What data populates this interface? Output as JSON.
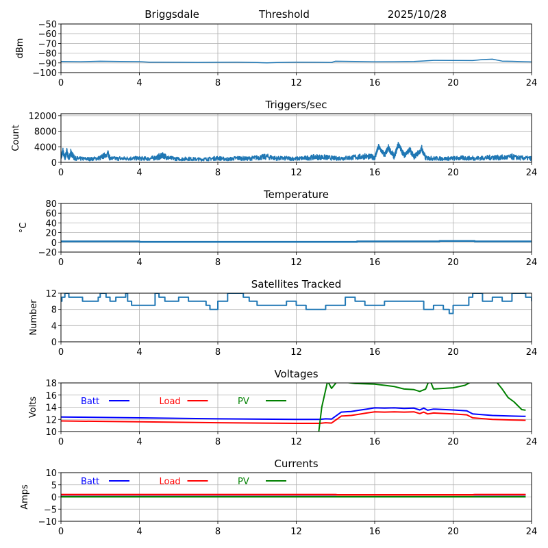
{
  "header": {
    "station": "Briggsdale",
    "mode": "Threshold",
    "date": "2025/10/28"
  },
  "chart_data": [
    {
      "type": "line",
      "id": "threshold",
      "title": "",
      "xlabel": "",
      "ylabel": "dBm",
      "xlim": [
        0,
        24
      ],
      "ylim": [
        -100,
        -50
      ],
      "xticks": [
        0,
        4,
        8,
        12,
        16,
        20,
        24
      ],
      "yticks": [
        -100,
        -90,
        -80,
        -70,
        -60,
        -50
      ],
      "ytick_labels": [
        "−100",
        "−90",
        "−80",
        "−70",
        "−60",
        "−50"
      ],
      "grid": true,
      "series": [
        {
          "name": "Threshold",
          "color": "#1f77b4",
          "x": [
            0,
            1,
            2,
            3,
            4,
            4.5,
            5,
            6,
            7,
            8,
            9,
            10,
            10.5,
            11,
            12,
            13,
            13.8,
            14,
            15,
            16,
            17,
            18,
            18.5,
            19,
            20,
            21,
            21.5,
            22,
            22.5,
            23,
            24
          ],
          "y": [
            -88.5,
            -88.8,
            -88.3,
            -88.6,
            -88.7,
            -89.2,
            -89.3,
            -89.4,
            -89.5,
            -89.4,
            -89.3,
            -89.6,
            -90,
            -89.6,
            -89.3,
            -89.4,
            -89.5,
            -88.3,
            -88.6,
            -88.9,
            -88.8,
            -88.6,
            -88,
            -87.4,
            -87.5,
            -87.6,
            -86.6,
            -86.2,
            -88.2,
            -88.4,
            -89
          ]
        }
      ]
    },
    {
      "type": "line",
      "id": "triggers",
      "title": "Triggers/sec",
      "xlabel": "",
      "ylabel": "Count",
      "xlim": [
        0,
        24
      ],
      "ylim": [
        0,
        12500
      ],
      "xticks": [
        0,
        4,
        8,
        12,
        16,
        20,
        24
      ],
      "yticks": [
        0,
        4000,
        8000,
        12000
      ],
      "ytick_labels": [
        "0",
        "4000",
        "8000",
        "12000"
      ],
      "grid": true,
      "series": [
        {
          "name": "Triggers",
          "color": "#1f77b4",
          "x": [
            0,
            0.1,
            0.2,
            0.3,
            0.4,
            0.5,
            0.7,
            1,
            1.5,
            2,
            2.4,
            2.5,
            3,
            3.5,
            4,
            4.5,
            5,
            5.2,
            5.5,
            6,
            6.5,
            7,
            7.5,
            8,
            8.5,
            9,
            9.5,
            10,
            10.5,
            11,
            11.5,
            12,
            12.5,
            13,
            13.5,
            14,
            14.5,
            15,
            15.5,
            16,
            16.2,
            16.5,
            16.7,
            17,
            17.2,
            17.5,
            17.8,
            18,
            18.4,
            18.6,
            19,
            19.5,
            20,
            20.5,
            21,
            21.5,
            22,
            22.5,
            23,
            23.5,
            24
          ],
          "y": [
            1500,
            3300,
            1200,
            3400,
            1000,
            2900,
            1200,
            1100,
            1000,
            1300,
            2700,
            1200,
            1100,
            1200,
            1200,
            1100,
            1600,
            2100,
            1300,
            1000,
            1100,
            900,
            1000,
            1300,
            900,
            1300,
            1100,
            1400,
            1700,
            1200,
            1200,
            1100,
            1300,
            1600,
            1500,
            1200,
            1300,
            1500,
            1800,
            1500,
            4700,
            2200,
            4300,
            1700,
            5400,
            2200,
            3800,
            1600,
            4000,
            1300,
            1200,
            1100,
            1200,
            1300,
            1200,
            1300,
            1500,
            1400,
            1600,
            1300,
            1200
          ]
        }
      ]
    },
    {
      "type": "line",
      "id": "temperature",
      "title": "Temperature",
      "xlabel": "",
      "ylabel": "°C",
      "xlim": [
        0,
        24
      ],
      "ylim": [
        -20,
        80
      ],
      "xticks": [
        0,
        4,
        8,
        12,
        16,
        20,
        24
      ],
      "yticks": [
        -20,
        0,
        20,
        40,
        60,
        80
      ],
      "ytick_labels": [
        "−20",
        "0",
        "20",
        "40",
        "60",
        "80"
      ],
      "grid": true,
      "series": [
        {
          "name": "Temperature",
          "color": "#1f77b4",
          "x": [
            0,
            4,
            4,
            15.1,
            15.1,
            19.3,
            19.3,
            21.1,
            21.1,
            24
          ],
          "y": [
            2,
            2,
            1,
            1,
            2,
            2,
            3,
            3,
            2,
            2
          ]
        }
      ]
    },
    {
      "type": "line",
      "id": "satellites",
      "title": "Satellites Tracked",
      "xlabel": "",
      "ylabel": "Number",
      "xlim": [
        0,
        24
      ],
      "ylim": [
        0,
        12
      ],
      "xticks": [
        0,
        4,
        8,
        12,
        16,
        20,
        24
      ],
      "yticks": [
        0,
        4,
        8,
        12
      ],
      "ytick_labels": [
        "0",
        "4",
        "8",
        "12"
      ],
      "grid": true,
      "series": [
        {
          "name": "Satellites",
          "color": "#1f77b4",
          "x": [
            0,
            0.05,
            0.2,
            0.4,
            0.5,
            1.1,
            1.9,
            2.0,
            2.3,
            2.5,
            2.8,
            3.0,
            3.3,
            3.4,
            3.6,
            4.8,
            5.0,
            5.3,
            6.0,
            6.5,
            7.0,
            7.4,
            7.6,
            8.0,
            8.5,
            9.0,
            9.3,
            9.6,
            10.0,
            11.0,
            11.5,
            12.0,
            12.5,
            13.0,
            13.5,
            14.3,
            14.5,
            15.0,
            15.5,
            16.0,
            16.5,
            17.0,
            18.0,
            18.5,
            19.0,
            19.5,
            19.8,
            20.0,
            20.5,
            20.8,
            21.0,
            21.5,
            22.0,
            22.5,
            23.0,
            23.7,
            24.0
          ],
          "y": [
            10,
            11,
            12,
            11,
            11,
            10,
            11,
            12,
            11,
            10,
            11,
            11,
            12,
            10,
            9,
            12,
            11,
            10,
            11,
            10,
            10,
            9,
            8,
            10,
            12,
            12,
            11,
            10,
            9,
            9,
            10,
            9,
            8,
            8,
            9,
            9,
            11,
            10,
            9,
            9,
            10,
            10,
            10,
            8,
            9,
            8,
            7,
            9,
            9,
            11,
            12,
            10,
            11,
            10,
            12,
            11,
            10
          ]
        }
      ]
    },
    {
      "type": "line",
      "id": "voltages",
      "title": "Voltages",
      "xlabel": "",
      "ylabel": "Volts",
      "xlim": [
        0,
        24
      ],
      "ylim": [
        10,
        18
      ],
      "xticks": [
        0,
        4,
        8,
        12,
        16,
        20,
        24
      ],
      "yticks": [
        10,
        12,
        14,
        16,
        18
      ],
      "ytick_labels": [
        "10",
        "12",
        "14",
        "16",
        "18"
      ],
      "grid": true,
      "legend": "inside-top-left-horizontal",
      "series": [
        {
          "name": "Batt",
          "color": "#0000ff",
          "x": [
            0,
            4,
            8,
            12,
            13.2,
            13.5,
            13.8,
            14.3,
            14.8,
            15.2,
            15.6,
            16,
            16.5,
            17,
            17.5,
            18,
            18.3,
            18.5,
            18.7,
            19,
            20,
            20.7,
            21,
            22,
            23,
            23.7
          ],
          "y": [
            12.4,
            12.25,
            12.1,
            12.0,
            12.0,
            12.1,
            12.05,
            13.2,
            13.3,
            13.5,
            13.7,
            13.9,
            13.85,
            13.9,
            13.8,
            13.85,
            13.55,
            13.85,
            13.5,
            13.7,
            13.55,
            13.4,
            12.9,
            12.65,
            12.55,
            12.5
          ]
        },
        {
          "name": "Load",
          "color": "#ff0000",
          "x": [
            0,
            4,
            8,
            12,
            13.2,
            13.5,
            13.8,
            14.3,
            14.8,
            15.2,
            15.6,
            16,
            16.5,
            17,
            17.5,
            18,
            18.3,
            18.5,
            18.7,
            19,
            20,
            20.7,
            21,
            22,
            23,
            23.7
          ],
          "y": [
            11.75,
            11.6,
            11.45,
            11.35,
            11.35,
            11.45,
            11.4,
            12.55,
            12.65,
            12.85,
            13.05,
            13.25,
            13.2,
            13.25,
            13.2,
            13.25,
            12.95,
            13.2,
            12.9,
            13.05,
            12.9,
            12.75,
            12.25,
            12.0,
            11.9,
            11.85
          ]
        },
        {
          "name": "PV",
          "color": "#008000",
          "x": [
            13.15,
            13.3,
            13.6,
            13.8,
            14.1,
            15,
            16,
            16.5,
            17,
            17.5,
            18,
            18.3,
            18.6,
            18.8,
            19,
            20,
            20.6,
            21.0,
            22.2,
            22.5,
            22.8,
            23.1,
            23.5,
            23.7
          ],
          "y": [
            10,
            14,
            18.3,
            17.1,
            18.3,
            17.9,
            17.8,
            17.6,
            17.4,
            17.0,
            16.9,
            16.6,
            17.0,
            18.6,
            17.0,
            17.2,
            17.6,
            18.3,
            18.2,
            17.0,
            15.6,
            14.9,
            13.6,
            13.5
          ]
        }
      ]
    },
    {
      "type": "line",
      "id": "currents",
      "title": "Currents",
      "xlabel": "",
      "ylabel": "Amps",
      "xlim": [
        0,
        24
      ],
      "ylim": [
        -10,
        10
      ],
      "xticks": [
        0,
        4,
        8,
        12,
        16,
        20,
        24
      ],
      "yticks": [
        -10,
        -5,
        0,
        5,
        10
      ],
      "ytick_labels": [
        "−10",
        "−5",
        "0",
        "5",
        "10"
      ],
      "grid": true,
      "legend": "inside-top-left-horizontal",
      "series": [
        {
          "name": "Batt",
          "color": "#0000ff",
          "x": [
            0,
            23.7
          ],
          "y": [
            0.9,
            0.9
          ]
        },
        {
          "name": "Load",
          "color": "#ff0000",
          "x": [
            0,
            14,
            14.1,
            21,
            21.1,
            23.7
          ],
          "y": [
            1.0,
            1.0,
            0.9,
            0.9,
            1.0,
            1.0
          ]
        },
        {
          "name": "PV",
          "color": "#008000",
          "x": [
            0,
            23.7
          ],
          "y": [
            0.1,
            0.1
          ]
        }
      ]
    }
  ]
}
